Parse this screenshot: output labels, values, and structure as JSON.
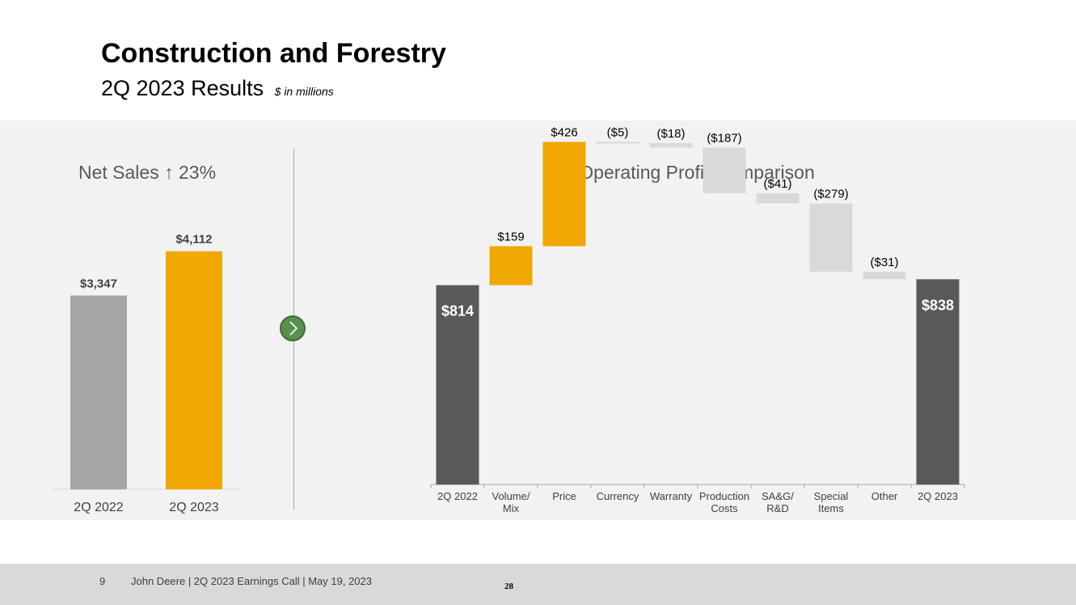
{
  "header": {
    "title": "Construction and Forestry",
    "subtitle": "2Q 2023 Results",
    "unit_note": "$ in millions"
  },
  "colors": {
    "prior_bar": "#a6a6a6",
    "accent": "#f0a800",
    "total_bar": "#595959",
    "negative_bar": "#d9d9d9",
    "panel_bg": "#f2f2f2",
    "nav_arrow": "#5a8f4e"
  },
  "nav": {
    "icon": "chevron-right-icon"
  },
  "chart_data": [
    {
      "type": "bar",
      "title": "Net Sales ↑ 23%",
      "categories": [
        "2Q 2022",
        "2Q 2023"
      ],
      "values": [
        3347,
        4112
      ],
      "data_labels": [
        "$3,347",
        "$4,112"
      ],
      "colors": [
        "#a6a6a6",
        "#f0a800"
      ],
      "ylim": [
        0,
        4750
      ],
      "grid": false,
      "legend": "none"
    },
    {
      "type": "waterfall",
      "title": "Operating Profit Comparison",
      "categories": [
        "2Q 2022",
        "Volume/\nMix",
        "Price",
        "Currency",
        "Warranty",
        "Production\nCosts",
        "SA&G/\nR&D",
        "Special\nItems",
        "Other",
        "2Q 2023"
      ],
      "values": [
        814,
        159,
        426,
        -5,
        -18,
        -187,
        -41,
        -279,
        -31,
        838
      ],
      "data_labels": [
        "$814",
        "$159",
        "$426",
        "($5)",
        "($18)",
        "($187)",
        "($41)",
        "($279)",
        "($31)",
        "$838"
      ],
      "kinds": [
        "total",
        "increase",
        "increase",
        "decrease",
        "decrease",
        "decrease",
        "decrease",
        "decrease",
        "decrease",
        "total"
      ],
      "ylim": [
        0,
        1450
      ],
      "grid": false,
      "legend": "none"
    }
  ],
  "footer": {
    "page": "9",
    "text": "John Deere | 2Q 2023 Earnings Call | May 19, 2023",
    "number": "28"
  }
}
